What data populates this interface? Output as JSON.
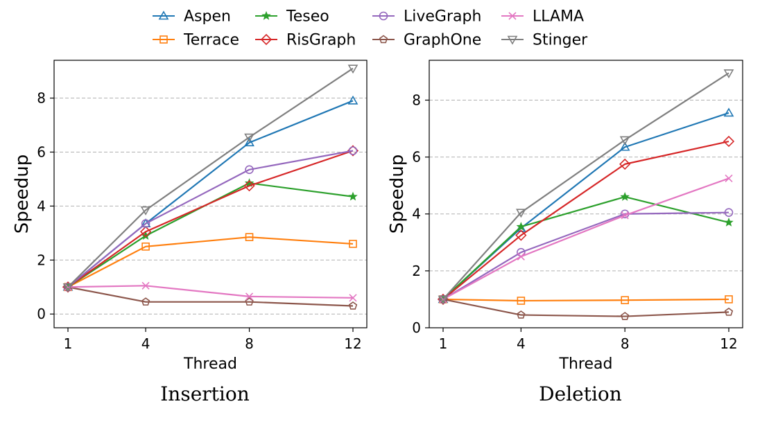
{
  "legend": [
    {
      "name": "Aspen",
      "color": "#1f77b4",
      "marker": "triangle-up"
    },
    {
      "name": "Terrace",
      "color": "#ff7f0e",
      "marker": "square"
    },
    {
      "name": "Teseo",
      "color": "#2ca02c",
      "marker": "star"
    },
    {
      "name": "RisGraph",
      "color": "#d62728",
      "marker": "diamond"
    },
    {
      "name": "LiveGraph",
      "color": "#9467bd",
      "marker": "circle"
    },
    {
      "name": "GraphOne",
      "color": "#8c564b",
      "marker": "pentagon"
    },
    {
      "name": "LLAMA",
      "color": "#e377c2",
      "marker": "x"
    },
    {
      "name": "Stinger",
      "color": "#7f7f7f",
      "marker": "triangle-down"
    }
  ],
  "chart_data": [
    {
      "type": "line",
      "caption": "Insertion",
      "xlabel": "Thread",
      "ylabel": "Speedup",
      "x": [
        1,
        4,
        8,
        12
      ],
      "x_tick_labels": [
        "1",
        "4",
        "8",
        "12"
      ],
      "ylim": [
        -0.2,
        9.4
      ],
      "yticks": [
        0,
        2,
        4,
        6,
        8
      ],
      "grid": "horizontal-dashed",
      "series": [
        {
          "name": "Aspen",
          "values": [
            1.0,
            3.35,
            6.35,
            7.9
          ]
        },
        {
          "name": "Terrace",
          "values": [
            1.0,
            2.5,
            2.85,
            2.6
          ]
        },
        {
          "name": "Teseo",
          "values": [
            1.0,
            2.9,
            4.85,
            4.35
          ]
        },
        {
          "name": "RisGraph",
          "values": [
            1.0,
            3.05,
            4.75,
            6.05
          ]
        },
        {
          "name": "LiveGraph",
          "values": [
            1.0,
            3.35,
            5.35,
            6.05
          ]
        },
        {
          "name": "GraphOne",
          "values": [
            1.0,
            0.45,
            0.45,
            0.3
          ]
        },
        {
          "name": "LLAMA",
          "values": [
            1.0,
            1.05,
            0.65,
            0.6
          ]
        },
        {
          "name": "Stinger",
          "values": [
            1.0,
            3.85,
            6.55,
            9.1
          ]
        }
      ]
    },
    {
      "type": "line",
      "caption": "Deletion",
      "xlabel": "Thread",
      "ylabel": "Speedup",
      "x": [
        1,
        4,
        8,
        12
      ],
      "x_tick_labels": [
        "1",
        "4",
        "8",
        "12"
      ],
      "ylim": [
        0,
        9.4
      ],
      "yticks": [
        0,
        2,
        4,
        6,
        8
      ],
      "grid": "horizontal-dashed",
      "series": [
        {
          "name": "Aspen",
          "values": [
            1.0,
            3.5,
            6.35,
            7.55
          ]
        },
        {
          "name": "Terrace",
          "values": [
            1.0,
            0.95,
            0.97,
            1.0
          ]
        },
        {
          "name": "Teseo",
          "values": [
            1.0,
            3.55,
            4.6,
            3.7
          ]
        },
        {
          "name": "RisGraph",
          "values": [
            1.0,
            3.25,
            5.75,
            6.55
          ]
        },
        {
          "name": "LiveGraph",
          "values": [
            1.0,
            2.65,
            4.0,
            4.05
          ]
        },
        {
          "name": "GraphOne",
          "values": [
            1.0,
            0.45,
            0.4,
            0.55
          ]
        },
        {
          "name": "LLAMA",
          "values": [
            1.0,
            2.5,
            3.95,
            5.25
          ]
        },
        {
          "name": "Stinger",
          "values": [
            1.0,
            4.05,
            6.6,
            8.95
          ]
        }
      ]
    }
  ]
}
